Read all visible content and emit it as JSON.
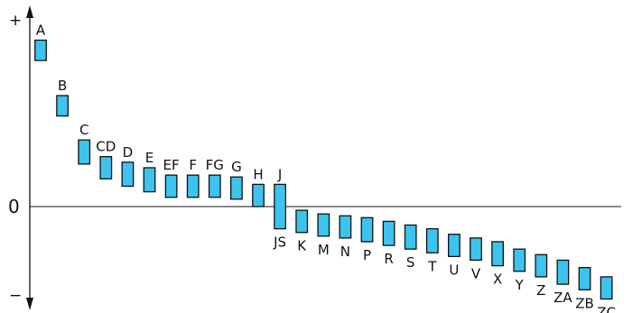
{
  "diagram": {
    "axis": {
      "plus": "+",
      "zero": "0",
      "minus": "−"
    },
    "colors": {
      "bar_fill": "#3cc3ee",
      "bar_stroke": "#111111",
      "line": "#111111"
    },
    "deviations": [
      {
        "label": "A",
        "top": 9.0,
        "bottom": 7.9
      },
      {
        "label": "B",
        "top": 6.0,
        "bottom": 4.9
      },
      {
        "label": "C",
        "top": 3.6,
        "bottom": 2.3
      },
      {
        "label": "CD",
        "top": 2.7,
        "bottom": 1.5
      },
      {
        "label": "D",
        "top": 2.4,
        "bottom": 1.1
      },
      {
        "label": "E",
        "top": 2.1,
        "bottom": 0.8
      },
      {
        "label": "EF",
        "top": 1.7,
        "bottom": 0.5
      },
      {
        "label": "F",
        "top": 1.7,
        "bottom": 0.5
      },
      {
        "label": "FG",
        "top": 1.7,
        "bottom": 0.5
      },
      {
        "label": "G",
        "top": 1.6,
        "bottom": 0.4
      },
      {
        "label": "H",
        "top": 1.2,
        "bottom": 0.0
      },
      {
        "label": "J",
        "top": 1.2,
        "bottom": -1.2
      },
      {
        "label": "JS",
        "top": 1.2,
        "bottom": -1.2
      },
      {
        "label": "K",
        "top": -0.2,
        "bottom": -1.4
      },
      {
        "label": "M",
        "top": -0.4,
        "bottom": -1.6
      },
      {
        "label": "N",
        "top": -0.5,
        "bottom": -1.7
      },
      {
        "label": "P",
        "top": -0.6,
        "bottom": -1.9
      },
      {
        "label": "R",
        "top": -0.8,
        "bottom": -2.1
      },
      {
        "label": "S",
        "top": -1.0,
        "bottom": -2.3
      },
      {
        "label": "T",
        "top": -1.2,
        "bottom": -2.5
      },
      {
        "label": "U",
        "top": -1.5,
        "bottom": -2.7
      },
      {
        "label": "V",
        "top": -1.7,
        "bottom": -2.9
      },
      {
        "label": "X",
        "top": -1.9,
        "bottom": -3.2
      },
      {
        "label": "Y",
        "top": -2.3,
        "bottom": -3.5
      },
      {
        "label": "Z",
        "top": -2.6,
        "bottom": -3.8
      },
      {
        "label": "ZA",
        "top": -2.9,
        "bottom": -4.2
      },
      {
        "label": "ZB",
        "top": -3.3,
        "bottom": -4.5
      },
      {
        "label": "ZC",
        "top": -3.8,
        "bottom": -5.0
      }
    ]
  }
}
